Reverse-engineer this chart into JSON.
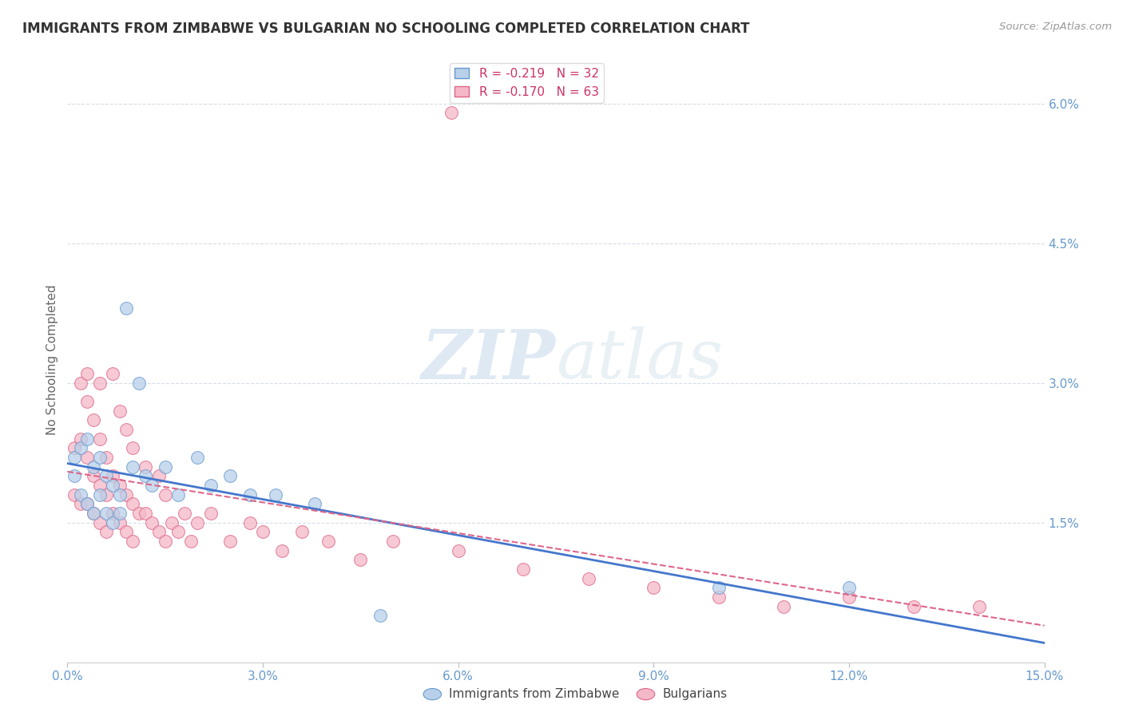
{
  "title": "IMMIGRANTS FROM ZIMBABWE VS BULGARIAN NO SCHOOLING COMPLETED CORRELATION CHART",
  "source": "Source: ZipAtlas.com",
  "ylabel": "No Schooling Completed",
  "xlim": [
    0.0,
    0.15
  ],
  "ylim": [
    0.0,
    0.065
  ],
  "xtick_vals": [
    0.0,
    0.03,
    0.06,
    0.09,
    0.12,
    0.15
  ],
  "xtick_labels": [
    "0.0%",
    "3.0%",
    "6.0%",
    "9.0%",
    "12.0%",
    "15.0%"
  ],
  "ytick_vals": [
    0.015,
    0.03,
    0.045,
    0.06
  ],
  "ytick_labels": [
    "1.5%",
    "3.0%",
    "4.5%",
    "6.0%"
  ],
  "watermark_part1": "ZIP",
  "watermark_part2": "atlas",
  "series1_label": "Immigrants from Zimbabwe",
  "series2_label": "Bulgarians",
  "series1_color": "#b8d0ea",
  "series2_color": "#f5b8c8",
  "series1_edge_color": "#6699cc",
  "series2_edge_color": "#dd6688",
  "trendline1_color": "#4477cc",
  "trendline2_color": "#dd6688",
  "background_color": "#ffffff",
  "grid_color": "#d5dde8",
  "axis_color": "#6699cc",
  "title_color": "#333333",
  "legend_r1": "R = -0.219",
  "legend_n1": "N = 32",
  "legend_r2": "R = -0.170",
  "legend_n2": "N = 63",
  "zimbabwe_x": [
    0.001,
    0.001,
    0.002,
    0.002,
    0.003,
    0.003,
    0.004,
    0.004,
    0.005,
    0.005,
    0.006,
    0.006,
    0.007,
    0.007,
    0.008,
    0.008,
    0.009,
    0.01,
    0.011,
    0.012,
    0.013,
    0.015,
    0.017,
    0.02,
    0.022,
    0.025,
    0.028,
    0.032,
    0.038,
    0.048,
    0.1,
    0.12
  ],
  "zimbabwe_y": [
    0.022,
    0.02,
    0.023,
    0.018,
    0.024,
    0.017,
    0.021,
    0.016,
    0.022,
    0.018,
    0.02,
    0.016,
    0.019,
    0.015,
    0.018,
    0.016,
    0.038,
    0.021,
    0.03,
    0.02,
    0.019,
    0.021,
    0.018,
    0.022,
    0.019,
    0.02,
    0.018,
    0.018,
    0.017,
    0.005,
    0.008,
    0.008
  ],
  "bulgarians_x": [
    0.001,
    0.001,
    0.002,
    0.002,
    0.002,
    0.003,
    0.003,
    0.003,
    0.004,
    0.004,
    0.004,
    0.005,
    0.005,
    0.005,
    0.006,
    0.006,
    0.006,
    0.007,
    0.007,
    0.008,
    0.008,
    0.009,
    0.009,
    0.01,
    0.01,
    0.011,
    0.012,
    0.013,
    0.014,
    0.015,
    0.015,
    0.016,
    0.017,
    0.018,
    0.019,
    0.02,
    0.022,
    0.025,
    0.028,
    0.03,
    0.033,
    0.036,
    0.04,
    0.045,
    0.05,
    0.06,
    0.07,
    0.08,
    0.09,
    0.1,
    0.11,
    0.12,
    0.13,
    0.14,
    0.003,
    0.005,
    0.007,
    0.008,
    0.009,
    0.01,
    0.012,
    0.014,
    0.059
  ],
  "bulgarians_y": [
    0.023,
    0.018,
    0.03,
    0.024,
    0.017,
    0.028,
    0.022,
    0.017,
    0.026,
    0.02,
    0.016,
    0.024,
    0.019,
    0.015,
    0.022,
    0.018,
    0.014,
    0.02,
    0.016,
    0.019,
    0.015,
    0.018,
    0.014,
    0.017,
    0.013,
    0.016,
    0.016,
    0.015,
    0.014,
    0.018,
    0.013,
    0.015,
    0.014,
    0.016,
    0.013,
    0.015,
    0.016,
    0.013,
    0.015,
    0.014,
    0.012,
    0.014,
    0.013,
    0.011,
    0.013,
    0.012,
    0.01,
    0.009,
    0.008,
    0.007,
    0.006,
    0.007,
    0.006,
    0.006,
    0.031,
    0.03,
    0.031,
    0.027,
    0.025,
    0.023,
    0.021,
    0.02,
    0.059
  ]
}
